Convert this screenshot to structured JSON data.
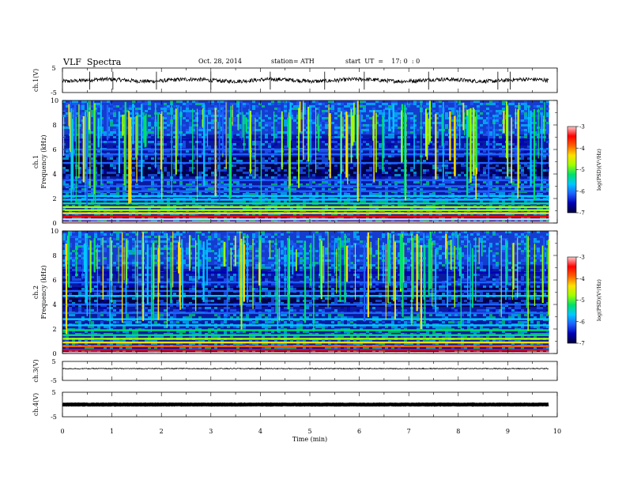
{
  "header": {
    "title": "VLF  Spectra",
    "date": "Oct. 28, 2014",
    "station": "station= ATH",
    "start": "start  UT  =    17: 0  : 0"
  },
  "chart_data": [
    {
      "type": "line",
      "panel": "ch1-waveform",
      "ylabel": "ch.1(V)",
      "ylim": [
        -5,
        5
      ],
      "yticks": [
        "5",
        "-5"
      ],
      "xlim": [
        0,
        10
      ],
      "level": 0,
      "spike_minutes": [
        0.55,
        1.02,
        1.9,
        3.0,
        4.2,
        5.3,
        6.1,
        7.4,
        8.8,
        9.05
      ],
      "color": "#000000"
    },
    {
      "type": "heatmap",
      "panel": "ch1-spectrogram",
      "ylabel": "Frequency  (kHz)",
      "channel_label": "ch.1",
      "ylim": [
        0,
        10
      ],
      "yticks": [
        "0",
        "2",
        "4",
        "6",
        "8",
        "10"
      ],
      "xlim": [
        0,
        10
      ],
      "data_end_min": 9.83,
      "colorbar": {
        "label": "log(PSD)(V²/Hz)",
        "ticks": [
          "-3",
          "-4",
          "-5",
          "-6",
          "-7"
        ],
        "range": [
          -7,
          -3
        ]
      },
      "bands_khz": [
        {
          "f": 0.3,
          "v": -3.2
        },
        {
          "f": 0.55,
          "v": -3.6
        },
        {
          "f": 0.8,
          "v": -4.2
        },
        {
          "f": 1.05,
          "v": -4.6
        },
        {
          "f": 1.3,
          "v": -5.0
        },
        {
          "f": 1.6,
          "v": -5.4
        },
        {
          "f": 1.9,
          "v": -5.6
        },
        {
          "f": 2.2,
          "v": -5.7
        },
        {
          "f": 2.6,
          "v": -5.9
        },
        {
          "f": 3.0,
          "v": -6.0
        },
        {
          "f": 3.5,
          "v": -6.1
        },
        {
          "f": 4.9,
          "v": -5.9
        },
        {
          "f": 5.6,
          "v": -6.3
        },
        {
          "f": 6.0,
          "v": -6.2
        },
        {
          "f": 6.8,
          "v": -6.4
        }
      ]
    },
    {
      "type": "heatmap",
      "panel": "ch2-spectrogram",
      "ylabel": "Frequency  (kHz)",
      "channel_label": "ch.2",
      "ylim": [
        0,
        10
      ],
      "yticks": [
        "0",
        "2",
        "4",
        "6",
        "8",
        "10"
      ],
      "xlim": [
        0,
        10
      ],
      "data_end_min": 9.83,
      "colorbar": {
        "label": "log(PSD)(V²/Hz)",
        "ticks": [
          "-3",
          "-4",
          "-5",
          "-6",
          "-7"
        ],
        "range": [
          -7,
          -3
        ]
      },
      "bands_khz": [
        {
          "f": 0.3,
          "v": -3.3
        },
        {
          "f": 0.6,
          "v": -3.8
        },
        {
          "f": 0.9,
          "v": -4.3
        },
        {
          "f": 1.2,
          "v": -4.8
        },
        {
          "f": 1.5,
          "v": -5.1
        },
        {
          "f": 1.9,
          "v": -5.3
        },
        {
          "f": 2.3,
          "v": -5.5
        },
        {
          "f": 2.8,
          "v": -5.7
        },
        {
          "f": 3.3,
          "v": -5.9
        },
        {
          "f": 4.0,
          "v": -6.0
        },
        {
          "f": 4.7,
          "v": -5.8
        },
        {
          "f": 5.1,
          "v": -5.9
        },
        {
          "f": 5.8,
          "v": -6.1
        },
        {
          "f": 6.6,
          "v": -6.4
        }
      ]
    },
    {
      "type": "line",
      "panel": "ch3-waveform",
      "ylabel": "ch.3(V)",
      "ylim": [
        -5,
        5
      ],
      "yticks": [
        "5",
        "-5"
      ],
      "xlim": [
        0,
        10
      ],
      "level": 1.2,
      "color": "#000000"
    },
    {
      "type": "line",
      "panel": "ch4-waveform",
      "ylabel": "ch.4(V)",
      "ylim": [
        -5,
        5
      ],
      "yticks": [
        "5",
        "-5"
      ],
      "xlim": [
        0,
        10
      ],
      "level": 0,
      "thick": true,
      "color": "#000000"
    }
  ],
  "xaxis": {
    "label": "Time  (min)",
    "ticks": [
      "0",
      "1",
      "2",
      "3",
      "4",
      "5",
      "6",
      "7",
      "8",
      "9",
      "10"
    ]
  },
  "colors": {
    "bg": "#ffffff",
    "frame": "#000000",
    "colormap": [
      "#00003a",
      "#0000b4",
      "#1e60ff",
      "#00c8ff",
      "#00e06a",
      "#a0ff00",
      "#ffe000",
      "#ff6000",
      "#ff0000",
      "#ffc8c8"
    ]
  }
}
